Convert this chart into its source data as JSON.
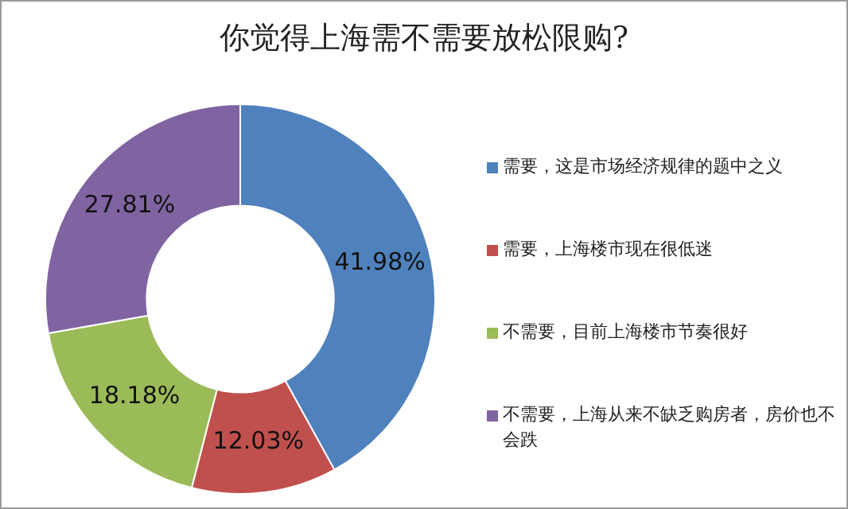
{
  "chart_data": {
    "type": "donut",
    "title": "你觉得上海需不需要放松限购?",
    "categories": [
      "需要，这是市场经济规律的题中之义",
      "需要，上海楼市现在很低迷",
      "不需要，目前上海楼市节奏很好",
      "不需要，上海从来不缺乏购房者，房价也不会跌"
    ],
    "values": [
      41.98,
      12.03,
      18.18,
      27.81
    ],
    "colors": [
      "#4f81bd",
      "#c0504d",
      "#9bbb59",
      "#8064a2"
    ],
    "value_labels": [
      "41.98%",
      "12.03%",
      "18.18%",
      "27.81%"
    ],
    "legend": "right"
  }
}
